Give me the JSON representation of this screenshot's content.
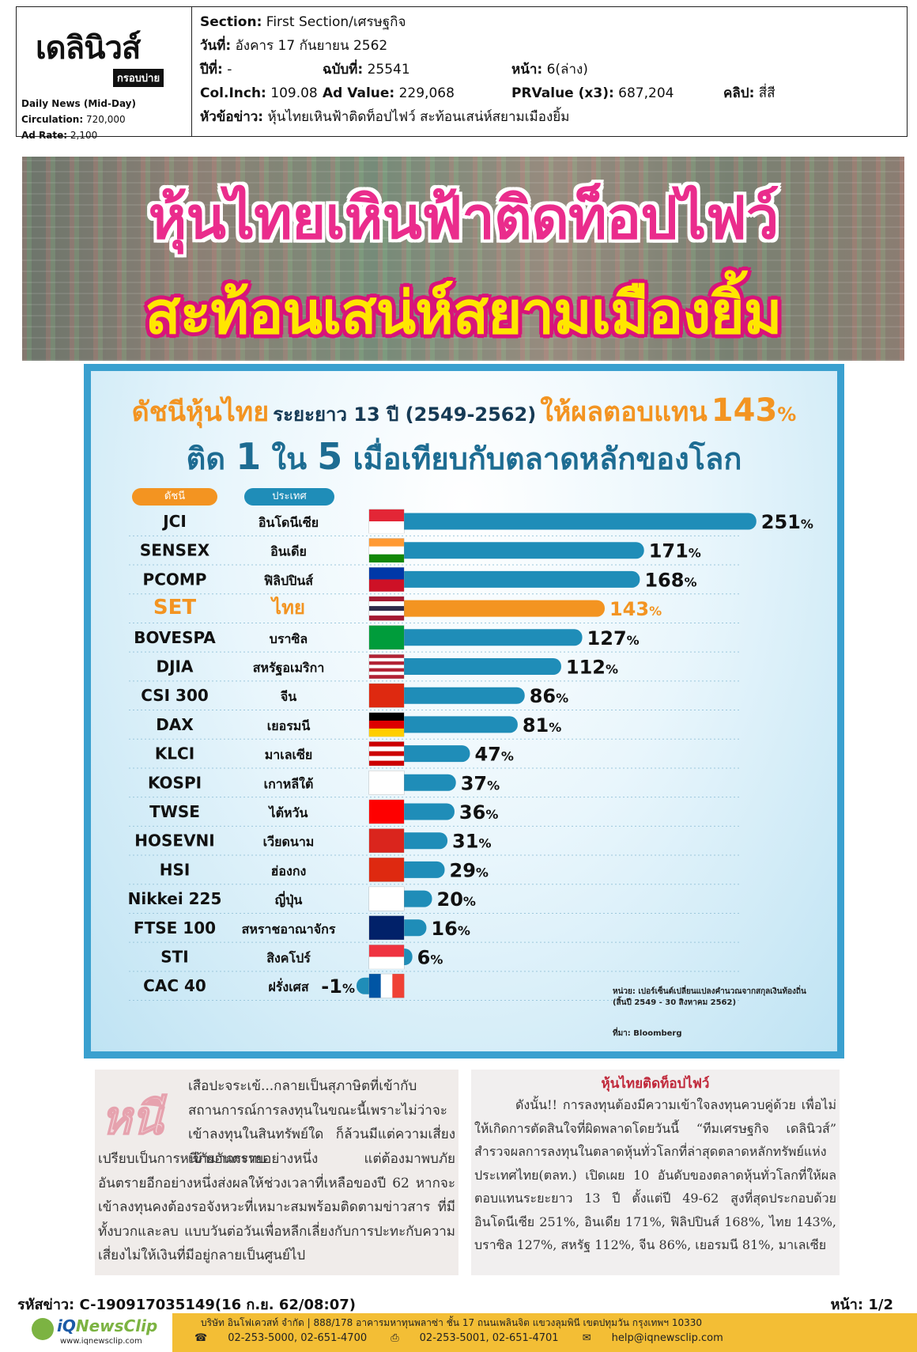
{
  "header": {
    "logo_text": "เดลินิวส์",
    "logo_tag": "กรอบบ่าย",
    "publication": "Daily News (Mid-Day)",
    "circulation_label": "Circulation:",
    "circulation": "720,000",
    "ad_rate_label": "Ad Rate:",
    "ad_rate": "2,100",
    "section_label": "Section:",
    "section": "First Section/เศรษฐกิจ",
    "date_label": "วันที่:",
    "date": "อังคาร 17 กันยายน 2562",
    "year_label": "ปีที่:",
    "year": "-",
    "issue_label": "ฉบับที่:",
    "issue": "25541",
    "page_label": "หน้า:",
    "page": "6(ล่าง)",
    "colinch_label": "Col.Inch:",
    "colinch": "109.08",
    "advalue_label": "Ad Value:",
    "advalue": "229,068",
    "prvalue_label": "PRValue (x3):",
    "prvalue": "687,204",
    "clip_label": "คลิป:",
    "clip": "สี่สี",
    "headline_label": "หัวข้อข่าว:",
    "headline": "หุ้นไทยเหินฟ้าติดท็อปไฟว์ สะท้อนเสน่ห์สยามเมืองยิ้ม"
  },
  "banner": {
    "line1": "หุ้นไทยเหินฟ้าติดท็อปไฟว์",
    "line2": "สะท้อนเสน่ห์สยามเมืองยิ้ม"
  },
  "infographic": {
    "title_a": "ดัชนีหุ้นไทย",
    "title_b": "ระยะยาว 13 ปี (2549-2562)",
    "title_c": "ให้ผลตอบแทน",
    "title_d": "143",
    "title_e": "%",
    "subtitle_a": "ติด",
    "subtitle_b": "1",
    "subtitle_c": "ใน",
    "subtitle_d": "5",
    "subtitle_e": "เมื่อเทียบกับตลาดหลักของโลก",
    "col_index": "ดัชนี",
    "col_country": "ประเทศ",
    "note_line1": "หน่วย: เปอร์เซ็นต์เปลี่ยนแปลงคำนวณจากสกุลเงินท้องถิ่น",
    "note_line2": "(สิ้นปี 2549 - 30 สิงหาคม 2562)",
    "source": "ที่มา: Bloomberg",
    "colors": {
      "bar": "#1f8db8",
      "highlight": "#f39421",
      "text": "#111111"
    }
  },
  "chart_data": {
    "type": "bar",
    "orientation": "horizontal",
    "unit": "%",
    "categories": [
      "JCI",
      "SENSEX",
      "PCOMP",
      "SET",
      "BOVESPA",
      "DJIA",
      "CSI 300",
      "DAX",
      "KLCI",
      "KOSPI",
      "TWSE",
      "HOSEVNI",
      "HSI",
      "Nikkei 225",
      "FTSE 100",
      "STI",
      "CAC 40"
    ],
    "countries": [
      "อินโดนีเซีย",
      "อินเดีย",
      "ฟิลิปปินส์",
      "ไทย",
      "บราซิล",
      "สหรัฐอเมริกา",
      "จีน",
      "เยอรมนี",
      "มาเลเซีย",
      "เกาหลีใต้",
      "ไต้หวัน",
      "เวียดนาม",
      "ฮ่องกง",
      "ญี่ปุ่น",
      "สหราชอาณาจักร",
      "สิงคโปร์",
      "ฝรั่งเศส"
    ],
    "flags": [
      "indonesia",
      "india",
      "philippines",
      "thailand",
      "brazil",
      "usa",
      "china",
      "germany",
      "malaysia",
      "south-korea",
      "taiwan",
      "vietnam",
      "hong-kong",
      "japan",
      "uk",
      "singapore",
      "france"
    ],
    "values": [
      251,
      171,
      168,
      143,
      127,
      112,
      86,
      81,
      47,
      37,
      36,
      31,
      29,
      20,
      16,
      6,
      -1
    ],
    "highlight": "SET"
  },
  "article": {
    "left_dropcap": "หนี",
    "left_p1": "เสือปะจระเข้...กลายเป็นสุภาษิตที่เข้ากับสถานการณ์การลงทุนในขณะนี้เพราะไม่ว่าจะเข้าลงทุนในสินทรัพย์ใด ก็ล้วนมีแต่ความเสี่ยงเข้ามากระทบ",
    "left_p2": "เปรียบเป็นการหนีภัยอันตรายอย่างหนึ่ง แต่ต้องมาพบภัยอันตรายอีกอย่างหนึ่งส่งผลให้ช่วงเวลาที่เหลือของปี 62 หากจะเข้าลงทุนคงต้องรอจังหวะที่เหมาะสมพร้อมติดตามข่าวสาร ที่มีทั้งบวกและลบ แบบวันต่อวันเพื่อหลีกเลี่ยงกับการปะทะกับความเสี่ยงไม่ให้เงินที่มีอยู่กลายเป็นศูนย์ไป",
    "right_heading": "หุ้นไทยติดท็อปไฟว์",
    "right_p": "ดังนั้น!! การลงทุนต้องมีความเข้าใจลงทุนควบคู่ด้วย เพื่อไม่ให้เกิดการตัดสินใจที่ผิดพลาดโดยวันนี้ “ทีมเศรษฐกิจ เดลินิวส์” สำรวจผลการลงทุนในตลาดหุ้นทั่วโลกที่ล่าสุดตลาดหลักทรัพย์แห่งประเทศไทย(ตลท.) เปิดเผย 10 อันดับของตลาดหุ้นทั่วโลกที่ให้ผลตอบแทนระยะยาว 13 ปี ตั้งแต่ปี 49-62 สูงที่สุดประกอบด้วย อินโดนีเซีย 251%, อินเดีย 171%, ฟิลิปปินส์ 168%, ไทย 143%, บราซิล 127%, สหรัฐ 112%, จีน 86%, เยอรมนี 81%, มาเลเซีย"
  },
  "footer": {
    "ref": "รหัสข่าว: C-190917035149(16 ก.ย. 62/08:07)",
    "page": "หน้า: 1/2",
    "brand_a": "iQ",
    "brand_b": "NewsClip",
    "url": "www.iqnewsclip.com",
    "address": "บริษัท อินโฟเควสท์ จำกัด  |  888/178 อาคารมหาทุนพลาซ่า ชั้น 17 ถนนเพลินจิต แขวงลุมพินี เขตปทุมวัน กรุงเทพฯ 10330",
    "phone": "02-253-5000, 02-651-4700",
    "fax": "02-253-5001, 02-651-4701",
    "email": "help@iqnewsclip.com"
  }
}
